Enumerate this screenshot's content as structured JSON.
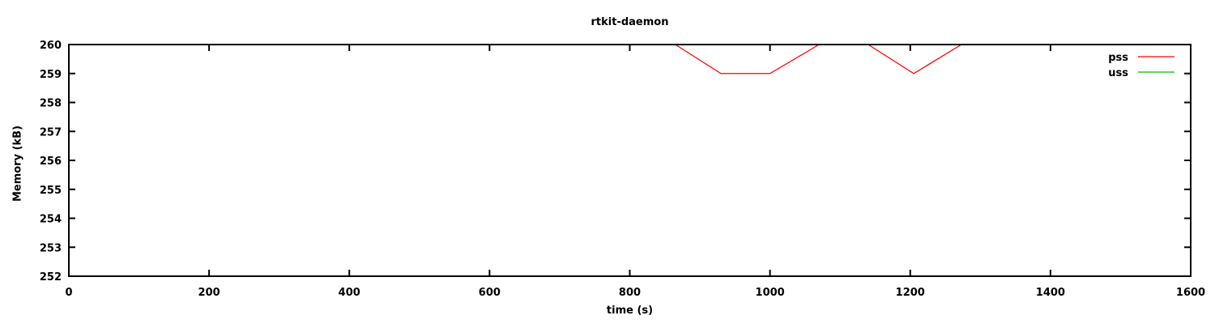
{
  "chart_data": {
    "type": "line",
    "title": "rtkit-daemon",
    "xlabel": "time (s)",
    "ylabel": "Memory (kB)",
    "xlim": [
      0,
      1600
    ],
    "ylim": [
      252,
      260
    ],
    "x_ticks": [
      0,
      200,
      400,
      600,
      800,
      1000,
      1200,
      1400,
      1600
    ],
    "y_ticks": [
      252,
      253,
      254,
      255,
      256,
      257,
      258,
      259,
      260
    ],
    "grid": false,
    "legend_position": "top-right-inside",
    "colors": {
      "background": "#ffffff",
      "axis": "#000000",
      "text": "#000000"
    },
    "series": [
      {
        "name": "pss",
        "color": "#ff0000",
        "visible_in_plot": true,
        "points": [
          [
            865,
            260
          ],
          [
            930,
            259
          ],
          [
            1000,
            259
          ],
          [
            1070,
            260
          ],
          [
            1140,
            260
          ],
          [
            1205,
            259
          ],
          [
            1273,
            260
          ]
        ]
      },
      {
        "name": "uss",
        "color": "#00c000",
        "visible_in_plot": false,
        "points": []
      }
    ]
  }
}
